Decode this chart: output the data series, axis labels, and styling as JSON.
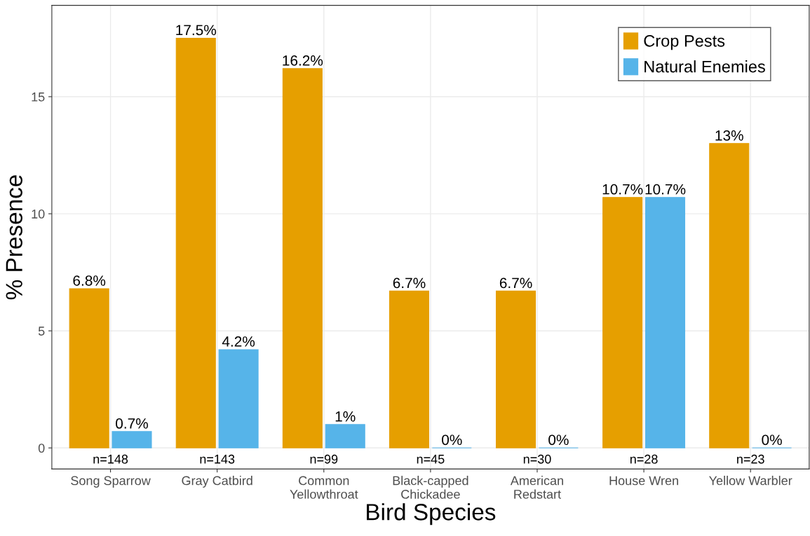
{
  "chart_data": {
    "type": "bar",
    "xlabel": "Bird Species",
    "ylabel": "% Presence",
    "categories": [
      "Song Sparrow",
      "Gray Catbird",
      "Common\nYellowthroat",
      "Black-capped\nChickadee",
      "American\nRedstart",
      "House Wren",
      "Yellow Warbler"
    ],
    "series": [
      {
        "name": "Crop Pests",
        "color": "#e69f00",
        "values": [
          6.8,
          17.5,
          16.2,
          6.7,
          6.7,
          10.7,
          13
        ],
        "value_labels": [
          "6.8%",
          "17.5%",
          "16.2%",
          "6.7%",
          "6.7%",
          "10.7%",
          "13%"
        ]
      },
      {
        "name": "Natural Enemies",
        "color": "#56b4e9",
        "values": [
          0.7,
          4.2,
          1,
          0,
          0,
          10.7,
          0
        ],
        "value_labels": [
          "0.7%",
          "4.2%",
          "1%",
          "0%",
          "0%",
          "10.7%",
          "0%"
        ]
      }
    ],
    "ylim": [
      -0.9,
      18.9
    ],
    "yticks": [
      0,
      5,
      10,
      15
    ],
    "grid": true,
    "legend": "top right",
    "annotations": [
      "n=148",
      "n=143",
      "n=99",
      "n=45",
      "n=30",
      "n=28",
      "n=23"
    ]
  }
}
